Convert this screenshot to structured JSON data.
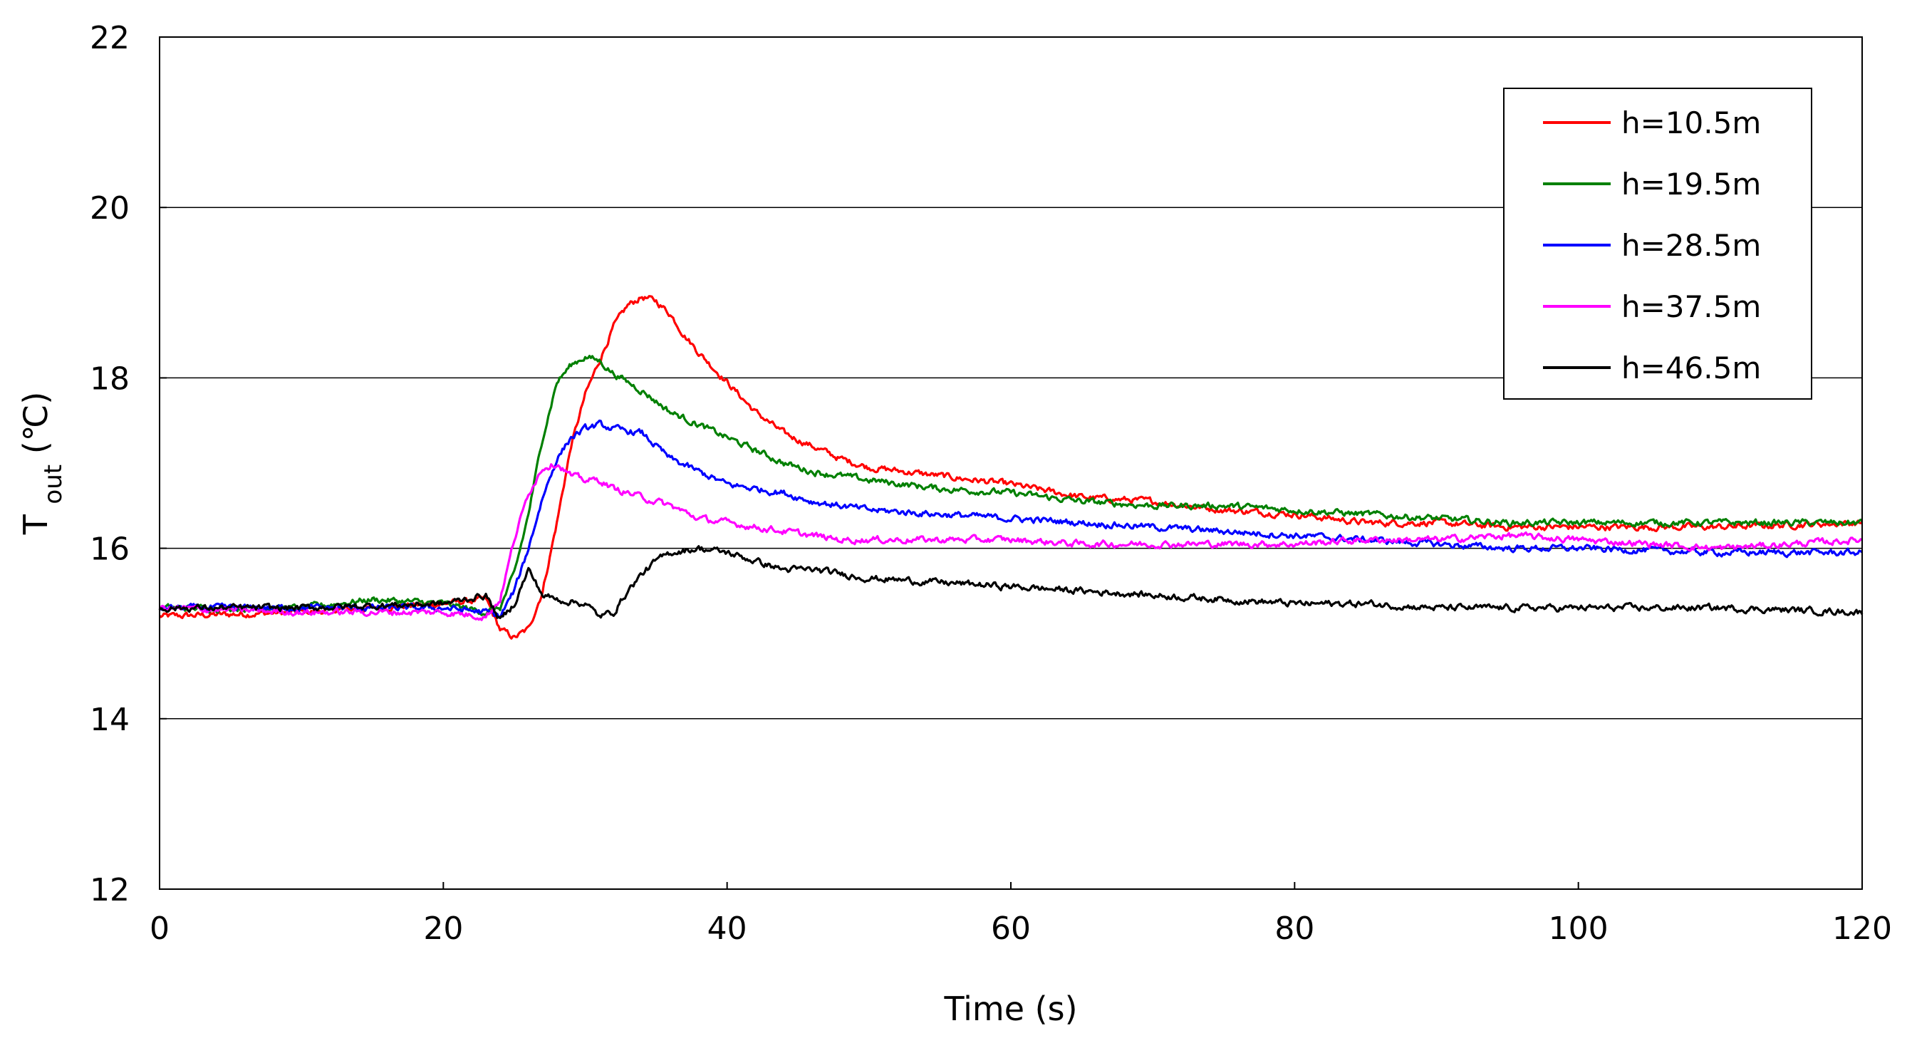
{
  "chart_data": {
    "type": "line",
    "title": "",
    "xlabel": "Time (s)",
    "ylabel_main": "T",
    "ylabel_sub": "out",
    "ylabel_unit": "(℃)",
    "xlim": [
      0,
      120
    ],
    "ylim": [
      12,
      22
    ],
    "xticks": [
      0,
      20,
      40,
      60,
      80,
      100,
      120
    ],
    "yticks": [
      12,
      14,
      16,
      18,
      20,
      22
    ],
    "xtick_labels": [
      "0",
      "20",
      "40",
      "60",
      "80",
      "100",
      "120"
    ],
    "ytick_labels": [
      "12",
      "14",
      "16",
      "18",
      "20",
      "22"
    ],
    "grid": "horizontal",
    "legend_position": "top-right",
    "series": [
      {
        "name": "h=10.5m",
        "color": "#ff0000",
        "points": [
          [
            0,
            15.2
          ],
          [
            10,
            15.25
          ],
          [
            20,
            15.35
          ],
          [
            23,
            15.4
          ],
          [
            24,
            15.05
          ],
          [
            25,
            14.95
          ],
          [
            26,
            15.05
          ],
          [
            27,
            15.5
          ],
          [
            28,
            16.3
          ],
          [
            29,
            17.2
          ],
          [
            30,
            17.8
          ],
          [
            31,
            18.2
          ],
          [
            32,
            18.6
          ],
          [
            33,
            18.85
          ],
          [
            34,
            18.95
          ],
          [
            35,
            18.9
          ],
          [
            36,
            18.75
          ],
          [
            37,
            18.5
          ],
          [
            38,
            18.3
          ],
          [
            40,
            17.95
          ],
          [
            42,
            17.6
          ],
          [
            44,
            17.35
          ],
          [
            46,
            17.2
          ],
          [
            48,
            17.05
          ],
          [
            50,
            16.95
          ],
          [
            55,
            16.85
          ],
          [
            60,
            16.75
          ],
          [
            65,
            16.6
          ],
          [
            70,
            16.55
          ],
          [
            75,
            16.45
          ],
          [
            80,
            16.4
          ],
          [
            85,
            16.3
          ],
          [
            90,
            16.3
          ],
          [
            95,
            16.25
          ],
          [
            100,
            16.25
          ],
          [
            110,
            16.25
          ],
          [
            120,
            16.3
          ]
        ]
      },
      {
        "name": "h=19.5m",
        "color": "#008000",
        "points": [
          [
            0,
            15.3
          ],
          [
            10,
            15.3
          ],
          [
            15,
            15.4
          ],
          [
            20,
            15.35
          ],
          [
            23,
            15.25
          ],
          [
            24,
            15.3
          ],
          [
            25,
            15.7
          ],
          [
            26,
            16.4
          ],
          [
            27,
            17.3
          ],
          [
            28,
            17.95
          ],
          [
            29,
            18.15
          ],
          [
            30,
            18.25
          ],
          [
            31,
            18.2
          ],
          [
            32,
            18.05
          ],
          [
            34,
            17.85
          ],
          [
            36,
            17.6
          ],
          [
            38,
            17.45
          ],
          [
            40,
            17.3
          ],
          [
            42,
            17.15
          ],
          [
            44,
            17.0
          ],
          [
            46,
            16.9
          ],
          [
            48,
            16.85
          ],
          [
            50,
            16.8
          ],
          [
            55,
            16.7
          ],
          [
            60,
            16.65
          ],
          [
            65,
            16.55
          ],
          [
            70,
            16.5
          ],
          [
            75,
            16.5
          ],
          [
            80,
            16.45
          ],
          [
            85,
            16.4
          ],
          [
            90,
            16.35
          ],
          [
            95,
            16.3
          ],
          [
            100,
            16.3
          ],
          [
            105,
            16.3
          ],
          [
            110,
            16.3
          ],
          [
            120,
            16.3
          ]
        ]
      },
      {
        "name": "h=28.5m",
        "color": "#0000ff",
        "points": [
          [
            0,
            15.3
          ],
          [
            10,
            15.3
          ],
          [
            20,
            15.3
          ],
          [
            23,
            15.25
          ],
          [
            24,
            15.2
          ],
          [
            25,
            15.5
          ],
          [
            26,
            16.0
          ],
          [
            27,
            16.6
          ],
          [
            28,
            17.05
          ],
          [
            29,
            17.3
          ],
          [
            30,
            17.4
          ],
          [
            31,
            17.45
          ],
          [
            32,
            17.4
          ],
          [
            34,
            17.35
          ],
          [
            35,
            17.2
          ],
          [
            36,
            17.05
          ],
          [
            38,
            16.9
          ],
          [
            40,
            16.75
          ],
          [
            42,
            16.7
          ],
          [
            44,
            16.65
          ],
          [
            46,
            16.55
          ],
          [
            48,
            16.5
          ],
          [
            50,
            16.45
          ],
          [
            55,
            16.4
          ],
          [
            60,
            16.35
          ],
          [
            65,
            16.3
          ],
          [
            70,
            16.25
          ],
          [
            75,
            16.2
          ],
          [
            80,
            16.15
          ],
          [
            85,
            16.1
          ],
          [
            90,
            16.05
          ],
          [
            95,
            16.0
          ],
          [
            100,
            16.0
          ],
          [
            110,
            15.95
          ],
          [
            120,
            15.95
          ]
        ]
      },
      {
        "name": "h=37.5m",
        "color": "#ff00ff",
        "points": [
          [
            0,
            15.3
          ],
          [
            10,
            15.25
          ],
          [
            20,
            15.25
          ],
          [
            23,
            15.2
          ],
          [
            24,
            15.4
          ],
          [
            25,
            16.1
          ],
          [
            26,
            16.65
          ],
          [
            27,
            16.95
          ],
          [
            28,
            17.0
          ],
          [
            29,
            16.85
          ],
          [
            30,
            16.8
          ],
          [
            31,
            16.8
          ],
          [
            32,
            16.7
          ],
          [
            34,
            16.6
          ],
          [
            36,
            16.5
          ],
          [
            38,
            16.35
          ],
          [
            40,
            16.3
          ],
          [
            42,
            16.25
          ],
          [
            44,
            16.2
          ],
          [
            46,
            16.15
          ],
          [
            48,
            16.1
          ],
          [
            50,
            16.1
          ],
          [
            55,
            16.1
          ],
          [
            60,
            16.1
          ],
          [
            65,
            16.05
          ],
          [
            70,
            16.05
          ],
          [
            75,
            16.05
          ],
          [
            80,
            16.05
          ],
          [
            85,
            16.1
          ],
          [
            90,
            16.1
          ],
          [
            95,
            16.15
          ],
          [
            100,
            16.1
          ],
          [
            105,
            16.05
          ],
          [
            110,
            16.0
          ],
          [
            115,
            16.05
          ],
          [
            120,
            16.1
          ]
        ]
      },
      {
        "name": "h=46.5m",
        "color": "#000000",
        "points": [
          [
            0,
            15.3
          ],
          [
            10,
            15.3
          ],
          [
            20,
            15.35
          ],
          [
            23,
            15.45
          ],
          [
            24,
            15.15
          ],
          [
            25,
            15.35
          ],
          [
            26,
            15.75
          ],
          [
            27,
            15.45
          ],
          [
            28,
            15.4
          ],
          [
            30,
            15.35
          ],
          [
            31,
            15.2
          ],
          [
            32,
            15.25
          ],
          [
            33,
            15.5
          ],
          [
            34,
            15.7
          ],
          [
            35,
            15.85
          ],
          [
            36,
            15.95
          ],
          [
            38,
            16.0
          ],
          [
            40,
            15.95
          ],
          [
            42,
            15.85
          ],
          [
            44,
            15.75
          ],
          [
            46,
            15.75
          ],
          [
            48,
            15.7
          ],
          [
            50,
            15.65
          ],
          [
            55,
            15.6
          ],
          [
            60,
            15.55
          ],
          [
            65,
            15.5
          ],
          [
            70,
            15.45
          ],
          [
            75,
            15.4
          ],
          [
            80,
            15.35
          ],
          [
            85,
            15.35
          ],
          [
            90,
            15.3
          ],
          [
            95,
            15.3
          ],
          [
            100,
            15.3
          ],
          [
            110,
            15.3
          ],
          [
            120,
            15.25
          ]
        ]
      }
    ]
  }
}
